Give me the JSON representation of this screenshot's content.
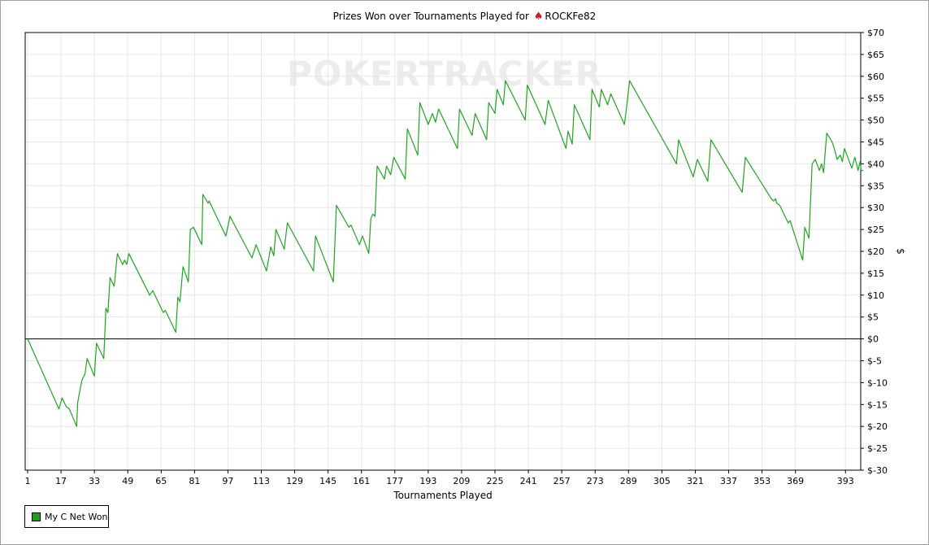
{
  "title": {
    "prefix": "Prizes Won over Tournaments Played for ",
    "spade_icon": "♠",
    "player": "ROCKFe82"
  },
  "watermark": "POKERTRACKER",
  "colors": {
    "series": "#1fa51f",
    "grid": "#e6e6e6",
    "zero_line": "#000000",
    "watermark": "#ececec"
  },
  "chart_data": {
    "type": "line",
    "title": "Prizes Won over Tournaments Played for ROCKFe82",
    "xlabel": "Tournaments Played",
    "ylabel": "$",
    "xlim": [
      1,
      393
    ],
    "ylim": [
      -30,
      70
    ],
    "x_ticks": [
      1,
      17,
      33,
      49,
      65,
      81,
      97,
      113,
      129,
      145,
      161,
      177,
      193,
      209,
      225,
      241,
      257,
      273,
      289,
      305,
      321,
      337,
      353,
      369,
      393
    ],
    "y_ticks": [
      70,
      65,
      60,
      55,
      50,
      45,
      40,
      35,
      30,
      25,
      20,
      15,
      10,
      5,
      0,
      -5,
      -10,
      -15,
      -20,
      -25,
      -30
    ],
    "y_tick_labels": [
      "$70",
      "$65",
      "$60",
      "$55",
      "$50",
      "$45",
      "$40",
      "$35",
      "$30",
      "$25",
      "$20",
      "$15",
      "$10",
      "$5",
      "$0",
      "$-5",
      "$-10",
      "$-15",
      "$-20",
      "$-25",
      "$-30"
    ],
    "grid": true,
    "legend_position": "bottom-left",
    "series": [
      {
        "name": "My C Net Won",
        "points": [
          [
            1,
            0
          ],
          [
            16,
            -16
          ],
          [
            17.5,
            -13.5
          ],
          [
            19.5,
            -15.5
          ],
          [
            21,
            -16
          ],
          [
            24.5,
            -20
          ],
          [
            25,
            -14.5
          ],
          [
            27,
            -9.5
          ],
          [
            28.5,
            -8
          ],
          [
            29.5,
            -4.5
          ],
          [
            33,
            -8.5
          ],
          [
            34,
            -1
          ],
          [
            37.5,
            -4.5
          ],
          [
            38.5,
            7
          ],
          [
            39.5,
            6
          ],
          [
            40.5,
            14
          ],
          [
            42.5,
            12
          ],
          [
            44,
            19.5
          ],
          [
            46.5,
            17
          ],
          [
            47.5,
            18
          ],
          [
            48.5,
            17
          ],
          [
            49.5,
            19.5
          ],
          [
            59.5,
            10
          ],
          [
            61,
            11
          ],
          [
            66,
            6
          ],
          [
            67,
            6.5
          ],
          [
            72,
            1.5
          ],
          [
            73,
            9.5
          ],
          [
            74,
            8.5
          ],
          [
            75.5,
            16.5
          ],
          [
            78,
            13
          ],
          [
            79,
            25
          ],
          [
            80.5,
            25.5
          ],
          [
            84.5,
            21.5
          ],
          [
            85,
            33
          ],
          [
            87.5,
            31
          ],
          [
            88,
            31.5
          ],
          [
            96,
            23.5
          ],
          [
            98,
            28
          ],
          [
            108.5,
            18.5
          ],
          [
            110.5,
            21.5
          ],
          [
            115.5,
            15.5
          ],
          [
            117.5,
            21
          ],
          [
            119,
            19
          ],
          [
            120,
            25
          ],
          [
            124,
            20.5
          ],
          [
            125.5,
            26.5
          ],
          [
            138,
            15.5
          ],
          [
            139,
            23.5
          ],
          [
            147.5,
            13
          ],
          [
            149,
            30.5
          ],
          [
            155,
            25.5
          ],
          [
            156,
            26
          ],
          [
            160,
            21.5
          ],
          [
            161.5,
            23.5
          ],
          [
            164.5,
            19.5
          ],
          [
            165.5,
            27.5
          ],
          [
            166.5,
            28.5
          ],
          [
            167.5,
            28
          ],
          [
            168.5,
            39.5
          ],
          [
            172,
            36.5
          ],
          [
            173,
            39.5
          ],
          [
            175,
            37.5
          ],
          [
            176.5,
            41.5
          ],
          [
            182,
            36.5
          ],
          [
            183,
            48
          ],
          [
            188,
            42
          ],
          [
            189,
            54
          ],
          [
            193,
            49
          ],
          [
            195,
            51.5
          ],
          [
            196.5,
            49.5
          ],
          [
            198,
            52.5
          ],
          [
            207,
            43.5
          ],
          [
            208,
            52.5
          ],
          [
            214,
            46.5
          ],
          [
            215.5,
            51.5
          ],
          [
            221,
            45.5
          ],
          [
            222,
            54
          ],
          [
            225,
            51.5
          ],
          [
            226,
            57
          ],
          [
            229,
            53.5
          ],
          [
            230,
            59
          ],
          [
            239.5,
            50
          ],
          [
            240.5,
            58
          ],
          [
            249,
            49
          ],
          [
            250.5,
            54.5
          ],
          [
            259,
            43.5
          ],
          [
            260,
            47.5
          ],
          [
            262,
            44.5
          ],
          [
            263,
            53.5
          ],
          [
            270.5,
            45.5
          ],
          [
            271.5,
            57
          ],
          [
            275,
            53
          ],
          [
            276,
            57
          ],
          [
            279,
            53.5
          ],
          [
            280.5,
            56
          ],
          [
            287,
            49
          ],
          [
            288,
            52.5
          ],
          [
            289.5,
            59
          ],
          [
            312,
            40
          ],
          [
            313,
            45.5
          ],
          [
            320,
            37
          ],
          [
            322,
            41
          ],
          [
            327,
            36
          ],
          [
            328.5,
            45.5
          ],
          [
            343.5,
            33.5
          ],
          [
            345,
            41.5
          ],
          [
            357.5,
            32
          ],
          [
            358.5,
            31.5
          ],
          [
            359.5,
            32
          ],
          [
            360,
            31
          ],
          [
            361.5,
            30.5
          ],
          [
            364.5,
            27.5
          ],
          [
            365.5,
            26.5
          ],
          [
            366.5,
            27
          ],
          [
            372.5,
            18
          ],
          [
            373.5,
            25.5
          ],
          [
            375.5,
            23
          ],
          [
            377,
            40
          ],
          [
            378.5,
            41
          ],
          [
            380.5,
            38.5
          ],
          [
            381.5,
            40
          ],
          [
            382.5,
            38
          ],
          [
            384,
            47
          ],
          [
            386,
            45.5
          ],
          [
            387,
            44.5
          ],
          [
            389,
            41
          ],
          [
            390.5,
            42
          ],
          [
            391.5,
            40.5
          ],
          [
            392.5,
            43.5
          ],
          [
            396,
            39
          ],
          [
            397.5,
            41.5
          ],
          [
            399,
            38.5
          ],
          [
            400,
            40.5
          ],
          [
            400.5,
            38.5
          ],
          [
            401.5,
            38.5
          ]
        ]
      }
    ]
  },
  "legend": {
    "label": "My C Net Won"
  }
}
